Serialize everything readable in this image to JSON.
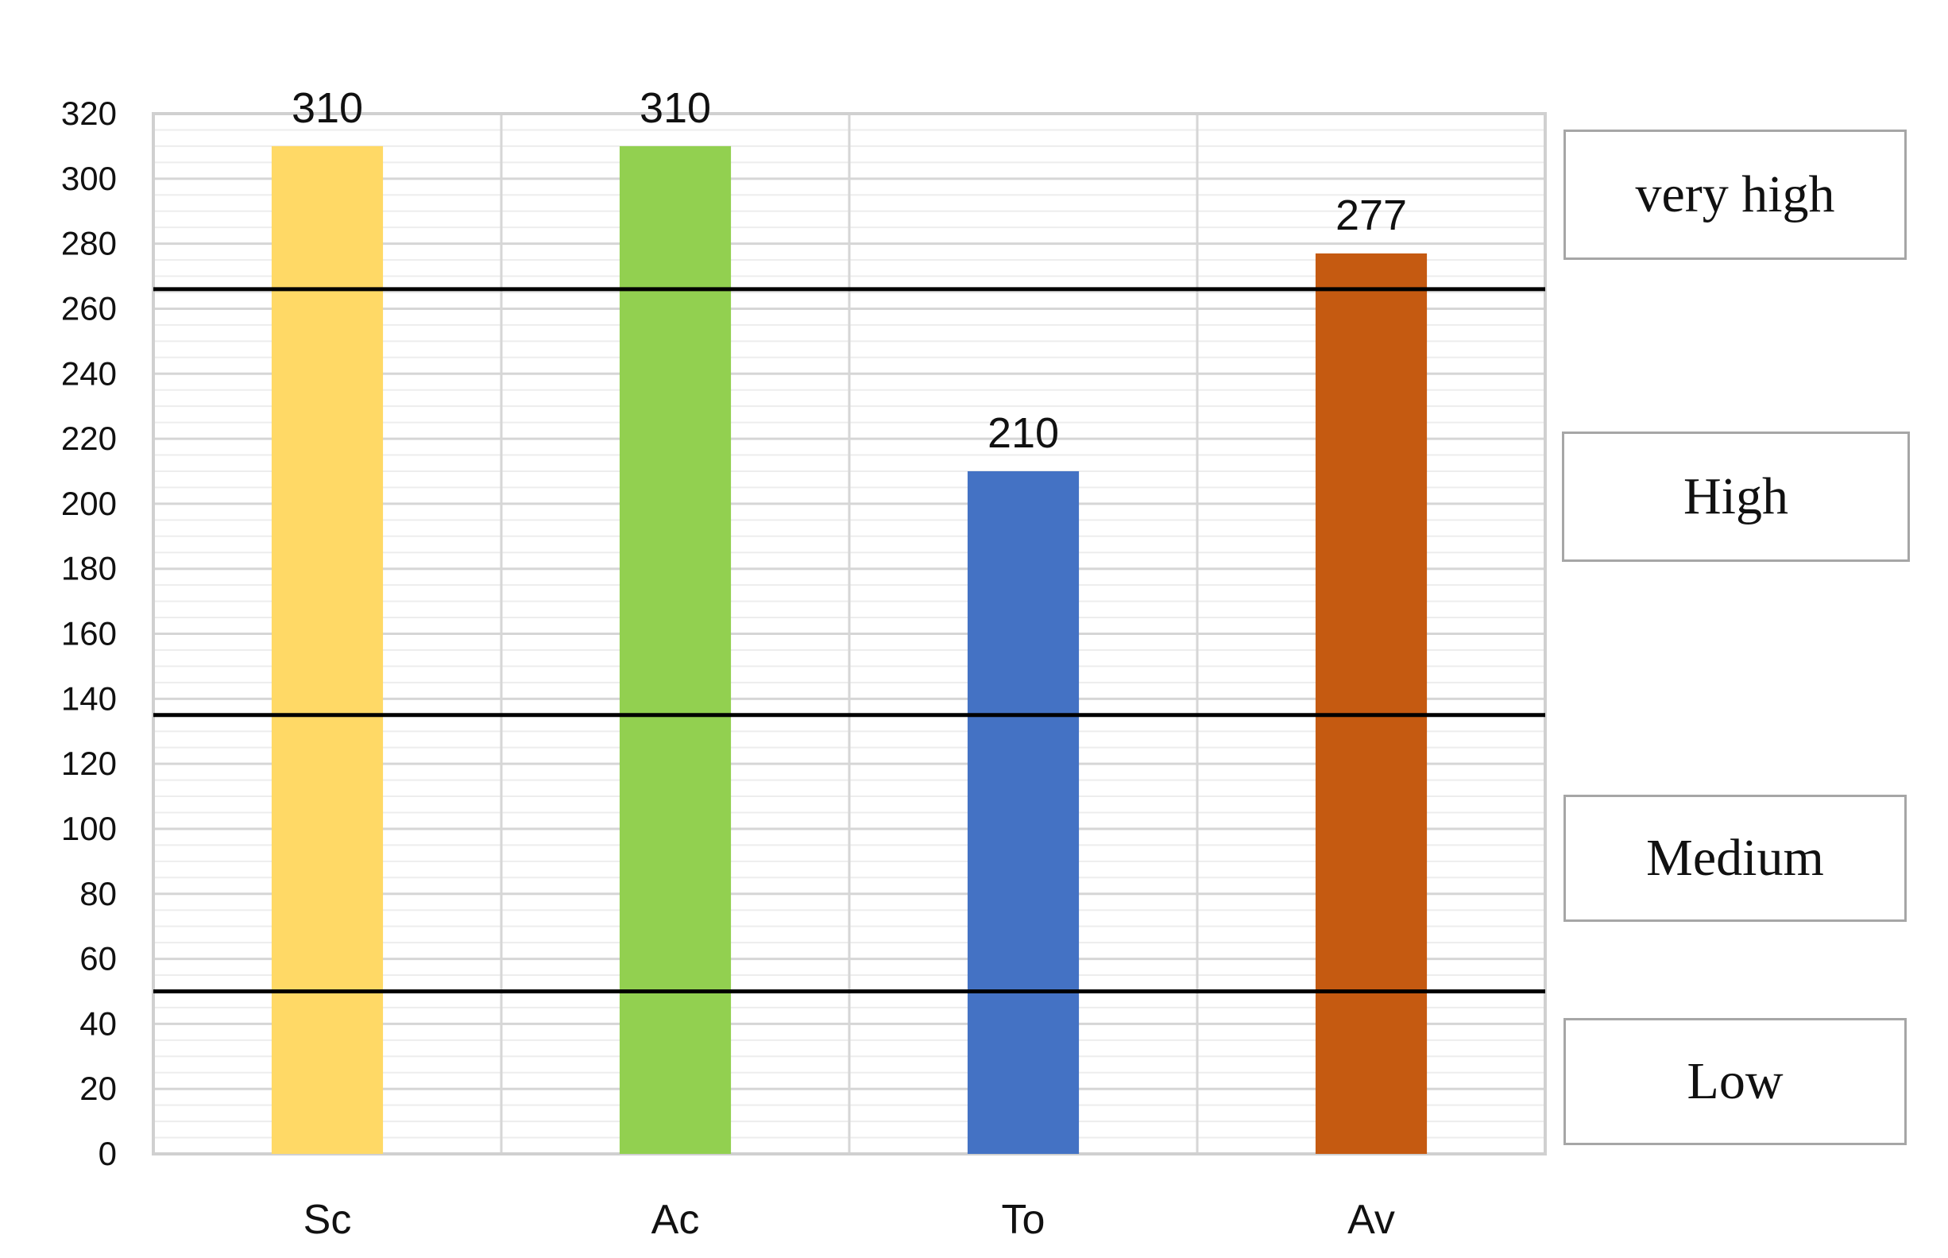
{
  "chart_data": {
    "type": "bar",
    "categories": [
      "Sc",
      "Ac",
      "To",
      "Av"
    ],
    "values": [
      310,
      310,
      210,
      277
    ],
    "value_labels": [
      "310",
      "310",
      "210",
      "277"
    ],
    "colors": [
      "#FFD966",
      "#92D050",
      "#4472C4",
      "#C55A11"
    ],
    "title": "",
    "xlabel": "",
    "ylabel": "",
    "ylim": [
      0,
      320
    ],
    "yticks": [
      0,
      20,
      40,
      60,
      80,
      100,
      120,
      140,
      160,
      180,
      200,
      220,
      240,
      260,
      280,
      300,
      320
    ],
    "grid": true,
    "threshold_lines": [
      50,
      135,
      266
    ],
    "threshold_color": "#000000",
    "level_labels": [
      "very high",
      "High",
      "Medium",
      "Low"
    ]
  }
}
